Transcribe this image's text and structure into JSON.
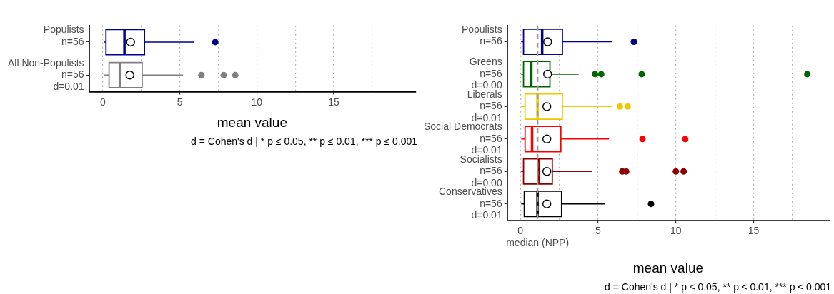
{
  "chart_data": [
    {
      "type": "box",
      "orientation": "horizontal",
      "categories": [
        "Populists\nn=56",
        "All Non-Populists\nn=56\nd=0.01"
      ],
      "colors": [
        "#00008b",
        "#808080"
      ],
      "boxes": [
        {
          "low": 0.05,
          "q1": 0.2,
          "median": 1.4,
          "q3": 2.7,
          "high": 5.9,
          "mean": 1.8,
          "outliers": [
            7.3
          ]
        },
        {
          "low": 0.05,
          "q1": 0.4,
          "median": 1.1,
          "q3": 2.55,
          "high": 5.2,
          "mean": 1.75,
          "outliers": [
            6.4,
            7.85,
            8.6
          ]
        }
      ],
      "xlim": [
        -0.9,
        20.3
      ],
      "xticks": [
        0,
        {
          "value": 2.5,
          "label": null
        },
        5,
        {
          "value": 7.5,
          "label": null
        },
        10,
        {
          "value": 12.5,
          "label": null
        },
        15,
        {
          "value": 17.5,
          "label": null
        }
      ],
      "grid": "x",
      "xlabel": "mean value",
      "annotations": [
        "d = Cohen's d | * p ≤ 0.05, ** p ≤ 0.01, *** p ≤ 0.001"
      ]
    },
    {
      "type": "box",
      "orientation": "horizontal",
      "categories": [
        "Populists\nn=56",
        "Greens\nn=56\nd=0.00",
        "Liberals\nn=56\nd=0.01",
        "Social Democrats\nn=56\nd=0.01",
        "Socialists\nn=56\nd=0.00",
        "Conservatives\nn=56\nd=0.01"
      ],
      "colors": [
        "#00008b",
        "#006400",
        "#eec900",
        "#ff0000",
        "#8b0000",
        "#000000"
      ],
      "boxes": [
        {
          "low": 0.05,
          "q1": 0.2,
          "median": 1.4,
          "q3": 2.7,
          "high": 5.9,
          "mean": 1.75,
          "outliers": [
            7.3
          ]
        },
        {
          "low": 0.05,
          "q1": 0.2,
          "median": 0.7,
          "q3": 1.9,
          "high": 3.75,
          "mean": 1.75,
          "outliers": [
            4.8,
            5.2,
            7.8,
            18.45
          ]
        },
        {
          "low": 0.05,
          "q1": 0.3,
          "median": 1.1,
          "q3": 2.7,
          "high": 5.9,
          "mean": 1.7,
          "outliers": [
            6.4,
            6.9
          ]
        },
        {
          "low": 0.05,
          "q1": 0.3,
          "median": 0.75,
          "q3": 2.6,
          "high": 5.7,
          "mean": 1.7,
          "outliers": [
            7.85,
            10.6
          ]
        },
        {
          "low": 0.05,
          "q1": 0.2,
          "median": 1.2,
          "q3": 2.05,
          "high": 4.6,
          "mean": 1.7,
          "outliers": [
            6.55,
            6.8,
            10.0,
            10.5
          ]
        },
        {
          "low": 0.05,
          "q1": 0.25,
          "median": 1.1,
          "q3": 2.65,
          "high": 5.45,
          "mean": 1.7,
          "outliers": [
            8.4
          ]
        }
      ],
      "xlim": [
        -0.85,
        19.85
      ],
      "xticks": [
        0,
        {
          "value": 2.5,
          "label": null
        },
        5,
        {
          "value": 7.5,
          "label": null
        },
        10,
        {
          "value": 12.5,
          "label": null
        },
        15,
        {
          "value": 17.5,
          "label": null
        }
      ],
      "grid": "x",
      "xlabel": "mean value",
      "ref_lines": [
        {
          "axis": "x",
          "value": 1.1,
          "label": "median (NPP)",
          "color": "#999999",
          "line_style": "dashed"
        }
      ],
      "annotations": [
        "d = Cohen's d | * p ≤ 0.05, ** p ≤ 0.01, *** p ≤ 0.001"
      ]
    }
  ]
}
